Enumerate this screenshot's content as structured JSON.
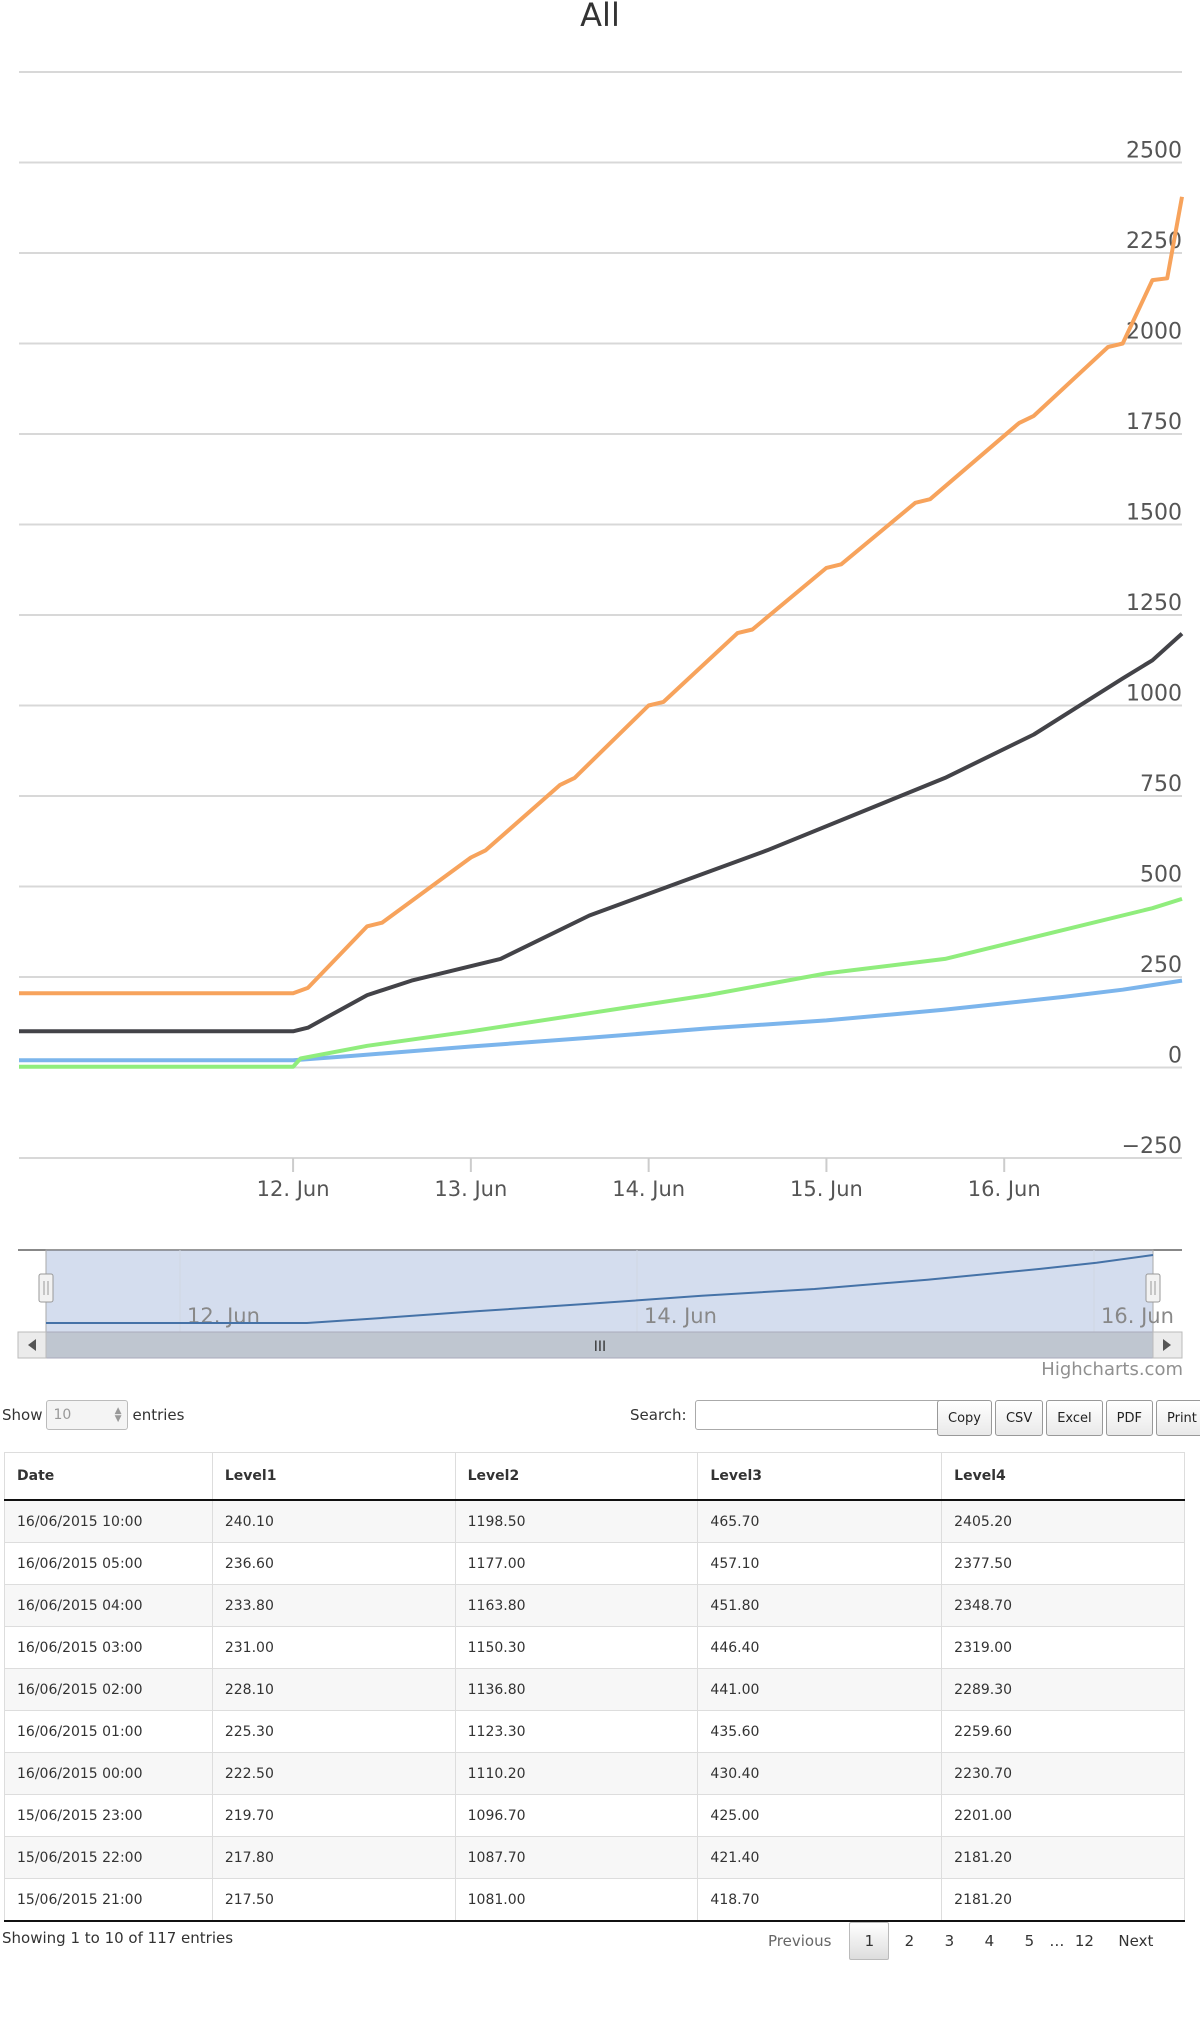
{
  "chart_data": {
    "type": "line",
    "title": "All",
    "x_ticks": [
      "12. Jun",
      "13. Jun",
      "14. Jun",
      "15. Jun",
      "16. Jun"
    ],
    "y_ticks": [
      -250,
      0,
      250,
      500,
      750,
      1000,
      1250,
      1500,
      1750,
      2000,
      2250,
      2500
    ],
    "ylim": [
      -250,
      2750
    ],
    "xlim_hours": [
      -37,
      120
    ],
    "x_unit_note_start": "11/06/2015 10:00",
    "series": [
      {
        "color": "#7cb5ec",
        "points": [
          [
            -37,
            20
          ],
          [
            -20,
            20
          ],
          [
            0,
            20
          ],
          [
            8,
            32
          ],
          [
            24,
            58
          ],
          [
            40,
            82
          ],
          [
            56,
            108
          ],
          [
            72,
            130
          ],
          [
            88,
            160
          ],
          [
            104,
            195
          ],
          [
            112,
            215
          ],
          [
            120,
            240
          ]
        ]
      },
      {
        "color": "#434348",
        "points": [
          [
            -37,
            100
          ],
          [
            -20,
            100
          ],
          [
            0,
            100
          ],
          [
            2,
            110
          ],
          [
            10,
            200
          ],
          [
            16,
            240
          ],
          [
            28,
            300
          ],
          [
            40,
            420
          ],
          [
            52,
            510
          ],
          [
            64,
            600
          ],
          [
            76,
            700
          ],
          [
            88,
            800
          ],
          [
            100,
            920
          ],
          [
            112,
            1075
          ],
          [
            116,
            1125
          ],
          [
            120,
            1198.5
          ]
        ]
      },
      {
        "color": "#90ed7d",
        "points": [
          [
            -37,
            2
          ],
          [
            -20,
            2
          ],
          [
            0,
            2
          ],
          [
            1,
            25
          ],
          [
            10,
            60
          ],
          [
            24,
            100
          ],
          [
            40,
            150
          ],
          [
            56,
            200
          ],
          [
            72,
            260
          ],
          [
            88,
            300
          ],
          [
            104,
            380
          ],
          [
            116,
            440
          ],
          [
            120,
            465.7
          ]
        ]
      },
      {
        "color": "#f7a35c",
        "points": [
          [
            -37,
            205
          ],
          [
            -20,
            205
          ],
          [
            0,
            205
          ],
          [
            2,
            220
          ],
          [
            10,
            390
          ],
          [
            12,
            400
          ],
          [
            24,
            580
          ],
          [
            26,
            600
          ],
          [
            36,
            780
          ],
          [
            38,
            800
          ],
          [
            48,
            1000
          ],
          [
            50,
            1010
          ],
          [
            60,
            1200
          ],
          [
            62,
            1210
          ],
          [
            72,
            1380
          ],
          [
            74,
            1390
          ],
          [
            84,
            1560
          ],
          [
            86,
            1570
          ],
          [
            98,
            1780
          ],
          [
            100,
            1800
          ],
          [
            110,
            1990
          ],
          [
            112,
            2000
          ],
          [
            116,
            2175
          ],
          [
            118,
            2180
          ],
          [
            120,
            2405.2
          ]
        ]
      }
    ]
  },
  "navigator": {
    "ticks": [
      "12. Jun",
      "14. Jun",
      "16. Jun"
    ],
    "scroll_glyph": "III"
  },
  "credits": "Highcharts.com",
  "table": {
    "length_label_pre": "Show",
    "length_value": "10",
    "length_label_post": "entries",
    "search_label": "Search:",
    "search_value": "",
    "buttons": [
      "Copy",
      "CSV",
      "Excel",
      "PDF",
      "Print"
    ],
    "columns": [
      "Date",
      "Level1",
      "Level2",
      "Level3",
      "Level4"
    ],
    "rows": [
      [
        "16/06/2015 10:00",
        "240.10",
        "1198.50",
        "465.70",
        "2405.20"
      ],
      [
        "16/06/2015 05:00",
        "236.60",
        "1177.00",
        "457.10",
        "2377.50"
      ],
      [
        "16/06/2015 04:00",
        "233.80",
        "1163.80",
        "451.80",
        "2348.70"
      ],
      [
        "16/06/2015 03:00",
        "231.00",
        "1150.30",
        "446.40",
        "2319.00"
      ],
      [
        "16/06/2015 02:00",
        "228.10",
        "1136.80",
        "441.00",
        "2289.30"
      ],
      [
        "16/06/2015 01:00",
        "225.30",
        "1123.30",
        "435.60",
        "2259.60"
      ],
      [
        "16/06/2015 00:00",
        "222.50",
        "1110.20",
        "430.40",
        "2230.70"
      ],
      [
        "15/06/2015 23:00",
        "219.70",
        "1096.70",
        "425.00",
        "2201.00"
      ],
      [
        "15/06/2015 22:00",
        "217.80",
        "1087.70",
        "421.40",
        "2181.20"
      ],
      [
        "15/06/2015 21:00",
        "217.50",
        "1081.00",
        "418.70",
        "2181.20"
      ]
    ],
    "info": "Showing 1 to 10 of 117 entries",
    "pager": {
      "previous": "Previous",
      "pages": [
        "1",
        "2",
        "3",
        "4",
        "5"
      ],
      "ellipsis": "…",
      "last": "12",
      "next": "Next"
    }
  }
}
